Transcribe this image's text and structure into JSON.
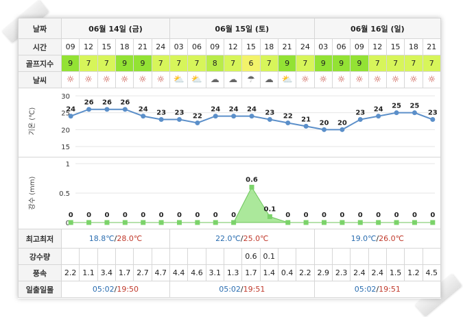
{
  "row_labels": {
    "date": "날짜",
    "time": "시간",
    "golf": "골프지수",
    "weather": "날씨",
    "temp_axis": "기온 (℃)",
    "rain_axis": "강수 (mm)",
    "minmax": "최고최저",
    "precip": "강수량",
    "wind": "풍속",
    "sun": "일출일몰"
  },
  "days": [
    {
      "label": "06월 14일 (금)",
      "min": "18.8℃",
      "max": "28.0℃",
      "sunrise": "05:02",
      "sunset": "19:50"
    },
    {
      "label": "06월 15일 (토)",
      "min": "22.0℃",
      "max": "25.0℃",
      "sunrise": "05:02",
      "sunset": "19:51"
    },
    {
      "label": "06월 16일 (일)",
      "min": "19.0℃",
      "max": "26.0℃",
      "sunrise": "05:02",
      "sunset": "19:51"
    }
  ],
  "hours": [
    "09",
    "12",
    "15",
    "18",
    "21",
    "24",
    "03",
    "06",
    "09",
    "12",
    "15",
    "18",
    "21",
    "24",
    "03",
    "06",
    "09",
    "12",
    "15",
    "18",
    "21"
  ],
  "golf_index": [
    9,
    7,
    7,
    9,
    9,
    7,
    7,
    7,
    8,
    7,
    6,
    7,
    9,
    7,
    9,
    9,
    9,
    7,
    7,
    7,
    7
  ],
  "weather_icons": [
    "sun-icon",
    "sun-icon",
    "sun-icon",
    "sun-icon",
    "sun-icon",
    "sun-icon",
    "partly-cloudy-icon",
    "partly-cloudy-icon",
    "cloudy-icon",
    "cloudy-icon",
    "rain-cloud-icon",
    "cloudy-icon",
    "partly-cloudy-icon",
    "sun-icon",
    "sun-icon",
    "sun-icon",
    "sun-icon",
    "sun-icon",
    "sun-icon",
    "sun-icon",
    "sun-icon"
  ],
  "precip_values": [
    "",
    "",
    "",
    "",
    "",
    "",
    "",
    "",
    "",
    "",
    "0.6",
    "0.1",
    "",
    "",
    "",
    "",
    "",
    "",
    "",
    "",
    ""
  ],
  "wind": [
    "2.2",
    "1.1",
    "3.4",
    "1.7",
    "2.7",
    "4.7",
    "4.4",
    "4.6",
    "3.1",
    "1.3",
    "1.7",
    "1.4",
    "0.4",
    "2.2",
    "2.9",
    "2.3",
    "2.4",
    "2.4",
    "1.5",
    "1.2",
    "4.5"
  ],
  "colors": {
    "temp_line": "#5b8fc9",
    "rain_fill": "#8fe07a",
    "rain_marker": "#7bd36a",
    "max_text": "#c0392b",
    "min_text": "#2a6db0"
  },
  "chart_data": [
    {
      "type": "line",
      "title": "",
      "ylabel": "기온 (℃)",
      "ylim": [
        15,
        30
      ],
      "yticks": [
        15,
        20,
        25,
        30
      ],
      "x": [
        "09",
        "12",
        "15",
        "18",
        "21",
        "24",
        "03",
        "06",
        "09",
        "12",
        "15",
        "18",
        "21",
        "24",
        "03",
        "06",
        "09",
        "12",
        "15",
        "18",
        "21"
      ],
      "values": [
        24,
        26,
        26,
        26,
        24,
        23,
        23,
        22,
        24,
        24,
        24,
        23,
        22,
        21,
        20,
        20,
        23,
        24,
        25,
        25,
        23
      ],
      "grid": true
    },
    {
      "type": "area",
      "title": "",
      "ylabel": "강수 (mm)",
      "ylim": [
        0,
        1
      ],
      "yticks": [
        0,
        0.5,
        1
      ],
      "x": [
        "09",
        "12",
        "15",
        "18",
        "21",
        "24",
        "03",
        "06",
        "09",
        "12",
        "15",
        "18",
        "21",
        "24",
        "03",
        "06",
        "09",
        "12",
        "15",
        "18",
        "21"
      ],
      "values": [
        0,
        0,
        0,
        0,
        0,
        0,
        0,
        0,
        0,
        0,
        0.6,
        0.1,
        0,
        0,
        0,
        0,
        0,
        0,
        0,
        0,
        0
      ],
      "value_labels": [
        "0",
        "0",
        "0",
        "0",
        "0",
        "0",
        "0",
        "0",
        "0",
        "0",
        "0.6",
        "0.1",
        "0",
        "0",
        "0",
        "0",
        "0",
        "0",
        "0",
        "0",
        "0"
      ],
      "grid": true
    }
  ]
}
